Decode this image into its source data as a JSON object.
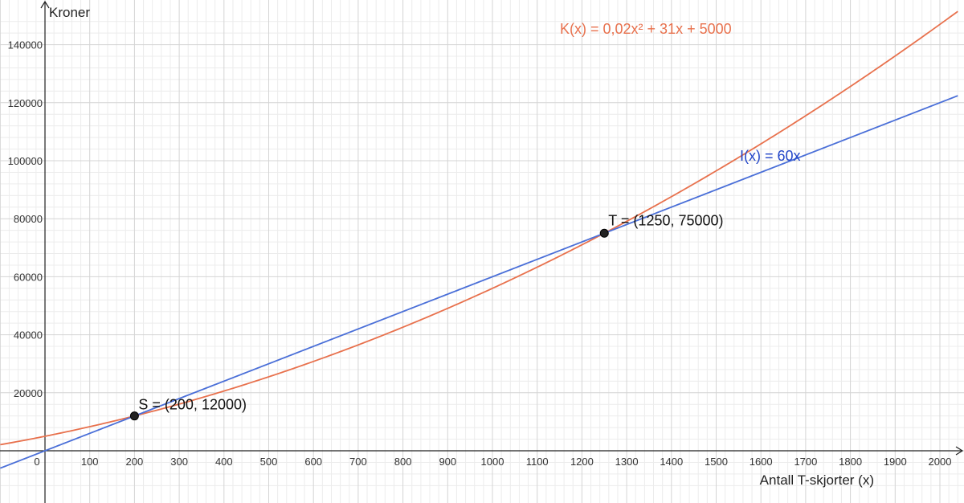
{
  "chart_data": {
    "type": "line",
    "xlabel": "Antall T-skjorter (x)",
    "ylabel": "Kroner",
    "xlim": [
      -100,
      2040
    ],
    "ylim": [
      -15000,
      150000
    ],
    "x_ticks": [
      100,
      200,
      300,
      400,
      500,
      600,
      700,
      800,
      900,
      1000,
      1100,
      1200,
      1300,
      1400,
      1500,
      1600,
      1700,
      1800,
      1900,
      2000
    ],
    "y_ticks": [
      20000,
      40000,
      60000,
      80000,
      100000,
      120000,
      140000
    ],
    "origin_label": "0",
    "grid": true,
    "series": [
      {
        "name": "K(x) = 0,02x² + 31x + 5000",
        "function": "quadratic",
        "coefficients": [
          0.02,
          31,
          5000
        ],
        "color": "#e8714d"
      },
      {
        "name": "I(x) = 60x",
        "function": "linear",
        "coefficients": [
          60,
          0
        ],
        "color": "#4a6fd8"
      }
    ],
    "points": [
      {
        "label": "S = (200, 12000)",
        "x": 200,
        "y": 12000
      },
      {
        "label": "T = (1250, 75000)",
        "x": 1250,
        "y": 75000
      }
    ]
  }
}
